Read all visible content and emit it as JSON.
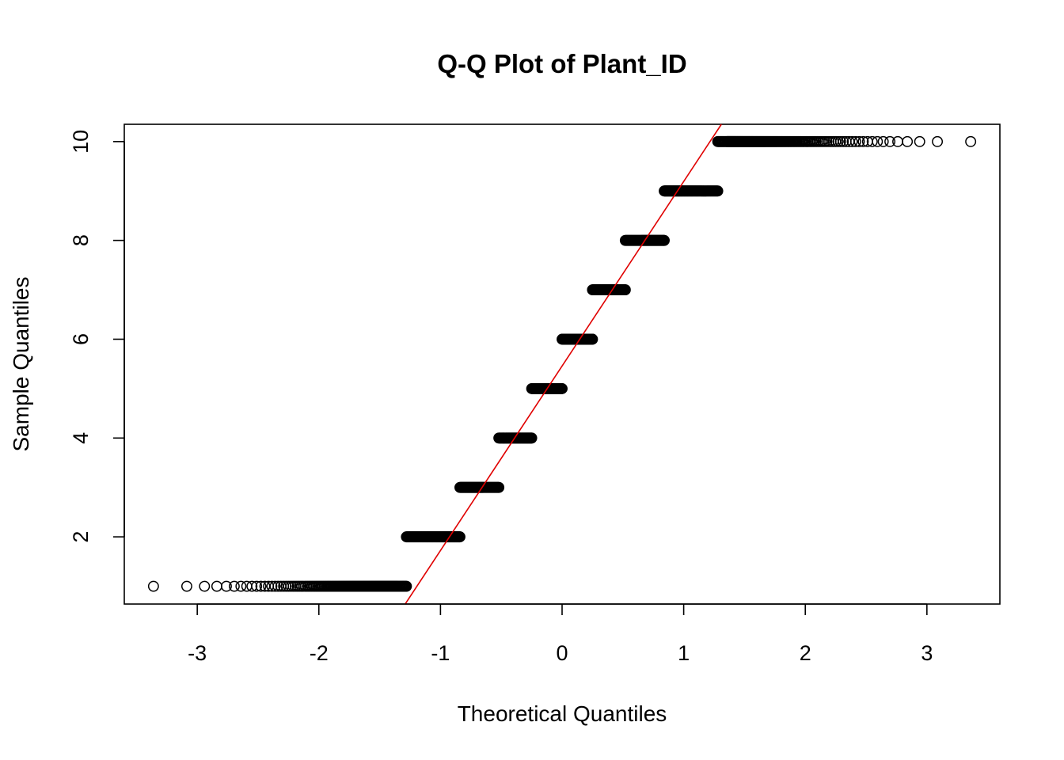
{
  "chart_data": {
    "type": "scatter",
    "title": "Q-Q Plot of Plant_ID",
    "xlabel": "Theoretical Quantiles",
    "ylabel": "Sample Quantiles",
    "xlim": [
      -3.6,
      3.6
    ],
    "ylim": [
      0.64,
      10.35
    ],
    "x_ticks": [
      -3,
      -2,
      -1,
      0,
      1,
      2,
      3
    ],
    "x_tick_labels": [
      "-3",
      "-2",
      "-1",
      "0",
      "1",
      "2",
      "3"
    ],
    "y_ticks": [
      2,
      4,
      6,
      8,
      10
    ],
    "y_tick_labels": [
      "2",
      "4",
      "6",
      "8",
      "10"
    ],
    "grid": false,
    "point_color": "#000000",
    "ref_line_color": "#e00000",
    "reference_line": {
      "x1": -1.29,
      "y1": 0.64,
      "x2": 1.31,
      "y2": 10.35
    },
    "groups": [
      {
        "y": 1,
        "x_start": -3.36,
        "x_end": -1.28
      },
      {
        "y": 2,
        "x_start": -1.28,
        "x_end": -0.84
      },
      {
        "y": 3,
        "x_start": -0.84,
        "x_end": -0.52
      },
      {
        "y": 4,
        "x_start": -0.52,
        "x_end": -0.25
      },
      {
        "y": 5,
        "x_start": -0.25,
        "x_end": 0.0
      },
      {
        "y": 6,
        "x_start": 0.0,
        "x_end": 0.25
      },
      {
        "y": 7,
        "x_start": 0.25,
        "x_end": 0.52
      },
      {
        "y": 8,
        "x_start": 0.52,
        "x_end": 0.84
      },
      {
        "y": 9,
        "x_start": 0.84,
        "x_end": 1.28
      },
      {
        "y": 10,
        "x_start": 1.28,
        "x_end": 3.36
      }
    ]
  }
}
